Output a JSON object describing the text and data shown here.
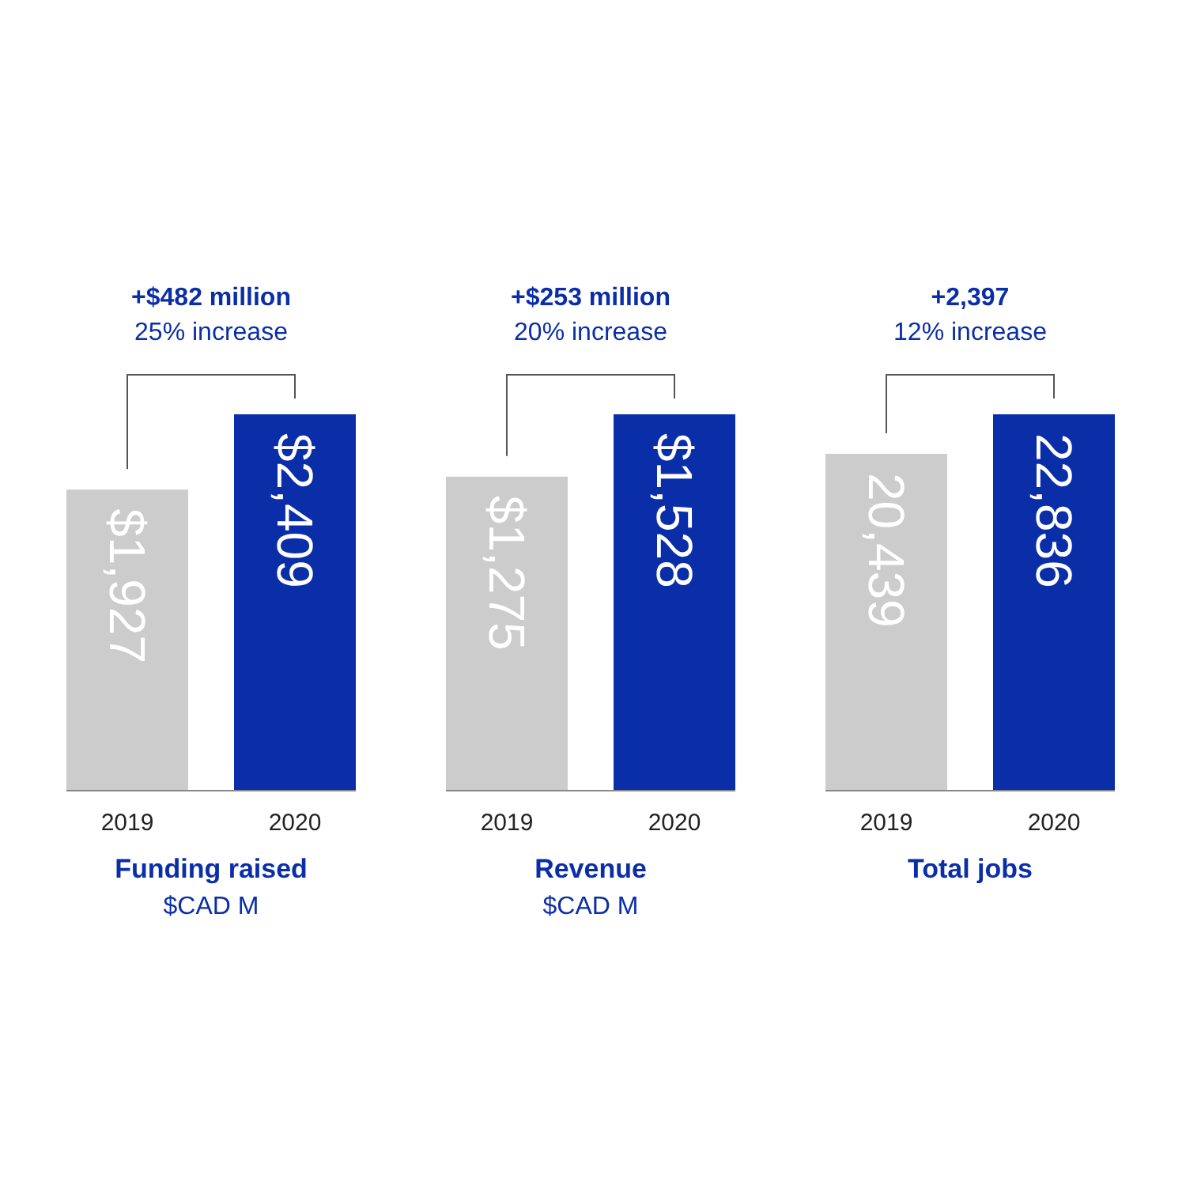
{
  "chart_data": [
    {
      "type": "bar",
      "title": "Funding raised",
      "subtitle": "$CAD M",
      "categories": [
        "2019",
        "2020"
      ],
      "values": [
        1927,
        2409
      ],
      "colors": [
        "#cccccc",
        "#0a2ea8"
      ],
      "value_labels": [
        "$1,927",
        "$2,409"
      ],
      "annotations": [
        "+$482 million",
        "25% increase"
      ]
    },
    {
      "type": "bar",
      "title": "Revenue",
      "subtitle": "$CAD M",
      "categories": [
        "2019",
        "2020"
      ],
      "values": [
        1275,
        1528
      ],
      "colors": [
        "#cccccc",
        "#0a2ea8"
      ],
      "value_labels": [
        "$1,275",
        "$1,528"
      ],
      "annotations": [
        "+$253 million",
        "20% increase"
      ]
    },
    {
      "type": "bar",
      "title": "Total jobs",
      "categories": [
        "2019",
        "2020"
      ],
      "values": [
        20439,
        22836
      ],
      "colors": [
        "#cccccc",
        "#0a2ea8"
      ],
      "value_labels": [
        "20,439",
        "22,836"
      ],
      "annotations": [
        "+2,397",
        "12% increase"
      ]
    }
  ]
}
